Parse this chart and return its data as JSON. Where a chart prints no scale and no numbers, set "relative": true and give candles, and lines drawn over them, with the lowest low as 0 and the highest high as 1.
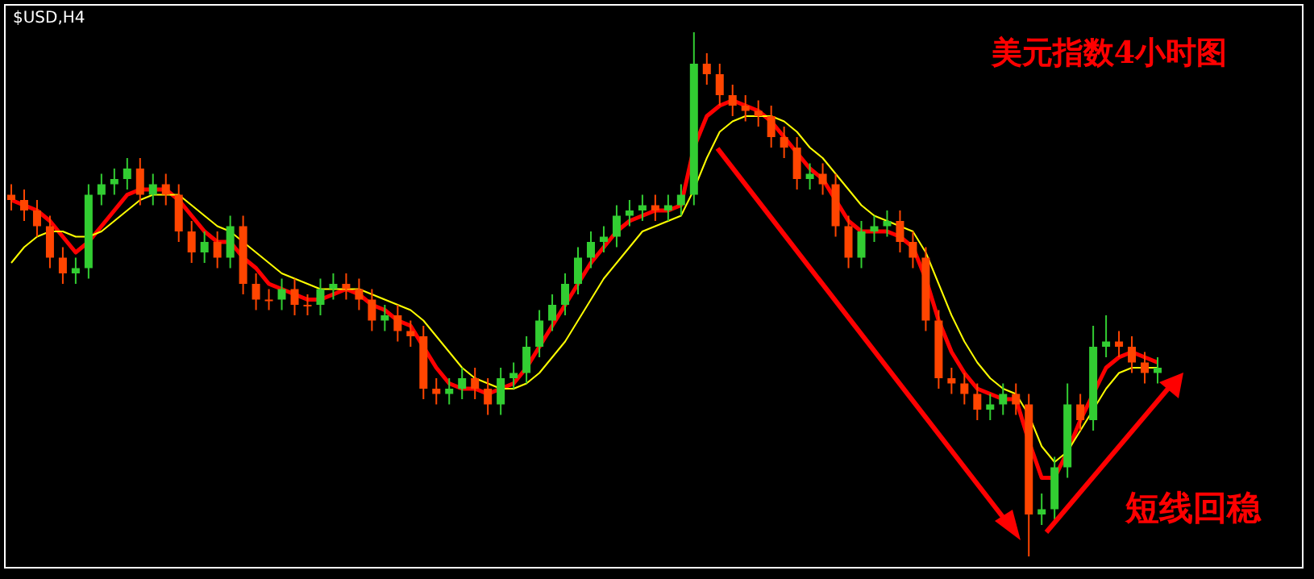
{
  "chart_data": {
    "type": "candlestick",
    "relative": true,
    "title": "美元指数4小时图",
    "subtitle": "$USD,H4",
    "annotations": [
      "短线回稳"
    ],
    "categories": [
      null,
      null,
      null,
      null,
      null,
      null,
      null,
      null,
      null,
      null,
      null,
      null,
      null,
      null,
      null,
      null,
      null,
      null,
      null,
      null,
      null,
      null,
      null,
      null,
      null,
      null,
      null,
      null,
      null,
      null,
      null,
      null,
      null,
      null,
      null,
      null,
      null,
      null,
      null,
      null,
      null,
      null,
      null,
      null,
      null,
      null,
      null,
      null,
      null,
      null,
      null,
      null,
      null,
      null,
      null,
      null,
      null,
      null,
      null,
      null,
      null,
      null,
      null,
      null,
      null,
      null,
      null,
      null,
      null,
      null,
      null,
      null,
      null,
      null,
      null,
      null,
      null,
      null,
      null,
      null,
      null,
      null,
      null,
      null,
      null,
      null,
      null,
      null,
      null,
      null
    ],
    "ohlc": [
      [
        0.69,
        0.71,
        0.66,
        0.68
      ],
      [
        0.68,
        0.7,
        0.64,
        0.66
      ],
      [
        0.66,
        0.68,
        0.61,
        0.63
      ],
      [
        0.63,
        0.65,
        0.55,
        0.57
      ],
      [
        0.57,
        0.59,
        0.52,
        0.54
      ],
      [
        0.54,
        0.57,
        0.52,
        0.55
      ],
      [
        0.55,
        0.71,
        0.53,
        0.69
      ],
      [
        0.69,
        0.73,
        0.67,
        0.71
      ],
      [
        0.71,
        0.74,
        0.69,
        0.72
      ],
      [
        0.72,
        0.76,
        0.7,
        0.74
      ],
      [
        0.74,
        0.76,
        0.67,
        0.69
      ],
      [
        0.69,
        0.73,
        0.67,
        0.71
      ],
      [
        0.71,
        0.73,
        0.67,
        0.69
      ],
      [
        0.69,
        0.71,
        0.6,
        0.62
      ],
      [
        0.62,
        0.64,
        0.56,
        0.58
      ],
      [
        0.58,
        0.62,
        0.56,
        0.6
      ],
      [
        0.6,
        0.62,
        0.55,
        0.57
      ],
      [
        0.57,
        0.65,
        0.55,
        0.63
      ],
      [
        0.63,
        0.65,
        0.5,
        0.52
      ],
      [
        0.52,
        0.54,
        0.47,
        0.49
      ],
      [
        0.49,
        0.51,
        0.47,
        0.49
      ],
      [
        0.49,
        0.53,
        0.47,
        0.51
      ],
      [
        0.51,
        0.53,
        0.46,
        0.48
      ],
      [
        0.48,
        0.5,
        0.46,
        0.48
      ],
      [
        0.48,
        0.53,
        0.46,
        0.51
      ],
      [
        0.51,
        0.54,
        0.49,
        0.52
      ],
      [
        0.52,
        0.54,
        0.49,
        0.51
      ],
      [
        0.51,
        0.53,
        0.47,
        0.49
      ],
      [
        0.49,
        0.51,
        0.43,
        0.45
      ],
      [
        0.45,
        0.48,
        0.43,
        0.46
      ],
      [
        0.46,
        0.48,
        0.41,
        0.43
      ],
      [
        0.43,
        0.45,
        0.4,
        0.42
      ],
      [
        0.42,
        0.44,
        0.3,
        0.32
      ],
      [
        0.32,
        0.34,
        0.29,
        0.31
      ],
      [
        0.31,
        0.34,
        0.29,
        0.32
      ],
      [
        0.32,
        0.36,
        0.3,
        0.34
      ],
      [
        0.34,
        0.36,
        0.3,
        0.32
      ],
      [
        0.32,
        0.34,
        0.27,
        0.29
      ],
      [
        0.29,
        0.36,
        0.27,
        0.34
      ],
      [
        0.34,
        0.37,
        0.32,
        0.35
      ],
      [
        0.35,
        0.42,
        0.33,
        0.4
      ],
      [
        0.4,
        0.47,
        0.38,
        0.45
      ],
      [
        0.45,
        0.5,
        0.43,
        0.48
      ],
      [
        0.48,
        0.54,
        0.46,
        0.52
      ],
      [
        0.52,
        0.59,
        0.5,
        0.57
      ],
      [
        0.57,
        0.62,
        0.55,
        0.6
      ],
      [
        0.6,
        0.63,
        0.58,
        0.61
      ],
      [
        0.61,
        0.67,
        0.59,
        0.65
      ],
      [
        0.65,
        0.68,
        0.63,
        0.66
      ],
      [
        0.66,
        0.69,
        0.64,
        0.67
      ],
      [
        0.67,
        0.69,
        0.64,
        0.66
      ],
      [
        0.66,
        0.69,
        0.64,
        0.67
      ],
      [
        0.67,
        0.71,
        0.65,
        0.69
      ],
      [
        0.69,
        1.0,
        0.67,
        0.94
      ],
      [
        0.94,
        0.96,
        0.9,
        0.92
      ],
      [
        0.92,
        0.94,
        0.86,
        0.88
      ],
      [
        0.88,
        0.9,
        0.84,
        0.86
      ],
      [
        0.86,
        0.88,
        0.83,
        0.85
      ],
      [
        0.85,
        0.87,
        0.82,
        0.84
      ],
      [
        0.84,
        0.86,
        0.78,
        0.8
      ],
      [
        0.8,
        0.82,
        0.76,
        0.78
      ],
      [
        0.78,
        0.8,
        0.7,
        0.72
      ],
      [
        0.72,
        0.75,
        0.7,
        0.73
      ],
      [
        0.73,
        0.75,
        0.69,
        0.71
      ],
      [
        0.71,
        0.73,
        0.61,
        0.63
      ],
      [
        0.63,
        0.65,
        0.55,
        0.57
      ],
      [
        0.57,
        0.64,
        0.55,
        0.62
      ],
      [
        0.62,
        0.65,
        0.6,
        0.63
      ],
      [
        0.63,
        0.66,
        0.61,
        0.64
      ],
      [
        0.64,
        0.66,
        0.58,
        0.6
      ],
      [
        0.6,
        0.62,
        0.55,
        0.57
      ],
      [
        0.57,
        0.59,
        0.43,
        0.45
      ],
      [
        0.45,
        0.47,
        0.32,
        0.34
      ],
      [
        0.34,
        0.36,
        0.31,
        0.33
      ],
      [
        0.33,
        0.35,
        0.29,
        0.31
      ],
      [
        0.31,
        0.33,
        0.26,
        0.28
      ],
      [
        0.28,
        0.31,
        0.26,
        0.29
      ],
      [
        0.29,
        0.33,
        0.27,
        0.31
      ],
      [
        0.31,
        0.33,
        0.27,
        0.29
      ],
      [
        0.29,
        0.31,
        0.0,
        0.08
      ],
      [
        0.08,
        0.12,
        0.06,
        0.09
      ],
      [
        0.09,
        0.19,
        0.07,
        0.17
      ],
      [
        0.17,
        0.33,
        0.15,
        0.29
      ],
      [
        0.29,
        0.31,
        0.24,
        0.26
      ],
      [
        0.26,
        0.44,
        0.24,
        0.4
      ],
      [
        0.4,
        0.46,
        0.38,
        0.41
      ],
      [
        0.41,
        0.43,
        0.38,
        0.4
      ],
      [
        0.4,
        0.42,
        0.35,
        0.37
      ],
      [
        0.37,
        0.39,
        0.33,
        0.35
      ],
      [
        0.35,
        0.38,
        0.33,
        0.36
      ]
    ],
    "colors": [
      "#ff4500",
      "#ff4500",
      "#ff4500",
      "#ff4500",
      "#ff4500",
      "#32cd32",
      "#32cd32",
      "#32cd32",
      "#32cd32",
      "#32cd32",
      "#ff4500",
      "#32cd32",
      "#ff4500",
      "#ff4500",
      "#ff4500",
      "#32cd32",
      "#ff4500",
      "#32cd32",
      "#ff4500",
      "#ff4500",
      "#ff4500",
      "#32cd32",
      "#ff4500",
      "#ff4500",
      "#32cd32",
      "#32cd32",
      "#ff4500",
      "#ff4500",
      "#ff4500",
      "#32cd32",
      "#ff4500",
      "#ff4500",
      "#ff4500",
      "#ff4500",
      "#32cd32",
      "#32cd32",
      "#ff4500",
      "#ff4500",
      "#32cd32",
      "#32cd32",
      "#32cd32",
      "#32cd32",
      "#32cd32",
      "#32cd32",
      "#32cd32",
      "#32cd32",
      "#32cd32",
      "#32cd32",
      "#32cd32",
      "#32cd32",
      "#ff4500",
      "#32cd32",
      "#32cd32",
      "#32cd32",
      "#ff4500",
      "#ff4500",
      "#ff4500",
      "#ff4500",
      "#ff4500",
      "#ff4500",
      "#ff4500",
      "#ff4500",
      "#32cd32",
      "#ff4500",
      "#ff4500",
      "#ff4500",
      "#32cd32",
      "#32cd32",
      "#32cd32",
      "#ff4500",
      "#ff4500",
      "#ff4500",
      "#ff4500",
      "#ff4500",
      "#ff4500",
      "#ff4500",
      "#32cd32",
      "#32cd32",
      "#ff4500",
      "#ff4500",
      "#32cd32",
      "#32cd32",
      "#32cd32",
      "#ff4500",
      "#32cd32",
      "#32cd32",
      "#ff4500",
      "#ff4500",
      "#ff4500",
      "#32cd32"
    ],
    "series": [
      {
        "type": "line",
        "color": "#ff0000",
        "values": [
          0.68,
          0.67,
          0.66,
          0.64,
          0.61,
          0.58,
          0.6,
          0.63,
          0.66,
          0.69,
          0.7,
          0.7,
          0.7,
          0.68,
          0.65,
          0.62,
          0.6,
          0.6,
          0.57,
          0.55,
          0.52,
          0.51,
          0.5,
          0.49,
          0.49,
          0.5,
          0.51,
          0.5,
          0.48,
          0.47,
          0.45,
          0.44,
          0.4,
          0.36,
          0.33,
          0.32,
          0.32,
          0.31,
          0.32,
          0.33,
          0.36,
          0.4,
          0.44,
          0.48,
          0.52,
          0.56,
          0.59,
          0.62,
          0.64,
          0.65,
          0.66,
          0.66,
          0.67,
          0.78,
          0.84,
          0.86,
          0.87,
          0.86,
          0.85,
          0.83,
          0.8,
          0.77,
          0.74,
          0.72,
          0.68,
          0.64,
          0.62,
          0.62,
          0.62,
          0.61,
          0.59,
          0.53,
          0.45,
          0.39,
          0.35,
          0.32,
          0.31,
          0.3,
          0.3,
          0.22,
          0.15,
          0.15,
          0.2,
          0.26,
          0.31,
          0.36,
          0.38,
          0.39,
          0.38,
          0.37
        ]
      },
      {
        "type": "line",
        "color": "#ffff00",
        "values": [
          0.56,
          0.59,
          0.61,
          0.62,
          0.62,
          0.61,
          0.61,
          0.62,
          0.64,
          0.66,
          0.68,
          0.69,
          0.69,
          0.69,
          0.67,
          0.65,
          0.63,
          0.62,
          0.6,
          0.58,
          0.56,
          0.54,
          0.53,
          0.52,
          0.51,
          0.51,
          0.51,
          0.51,
          0.5,
          0.49,
          0.48,
          0.47,
          0.45,
          0.42,
          0.39,
          0.36,
          0.34,
          0.33,
          0.32,
          0.32,
          0.33,
          0.35,
          0.38,
          0.41,
          0.45,
          0.49,
          0.53,
          0.56,
          0.59,
          0.62,
          0.63,
          0.64,
          0.65,
          0.7,
          0.76,
          0.81,
          0.83,
          0.84,
          0.84,
          0.84,
          0.83,
          0.81,
          0.78,
          0.76,
          0.73,
          0.7,
          0.67,
          0.65,
          0.64,
          0.63,
          0.62,
          0.58,
          0.52,
          0.46,
          0.41,
          0.37,
          0.34,
          0.32,
          0.31,
          0.27,
          0.21,
          0.18,
          0.2,
          0.24,
          0.28,
          0.32,
          0.35,
          0.36,
          0.36,
          0.36
        ]
      }
    ]
  }
}
